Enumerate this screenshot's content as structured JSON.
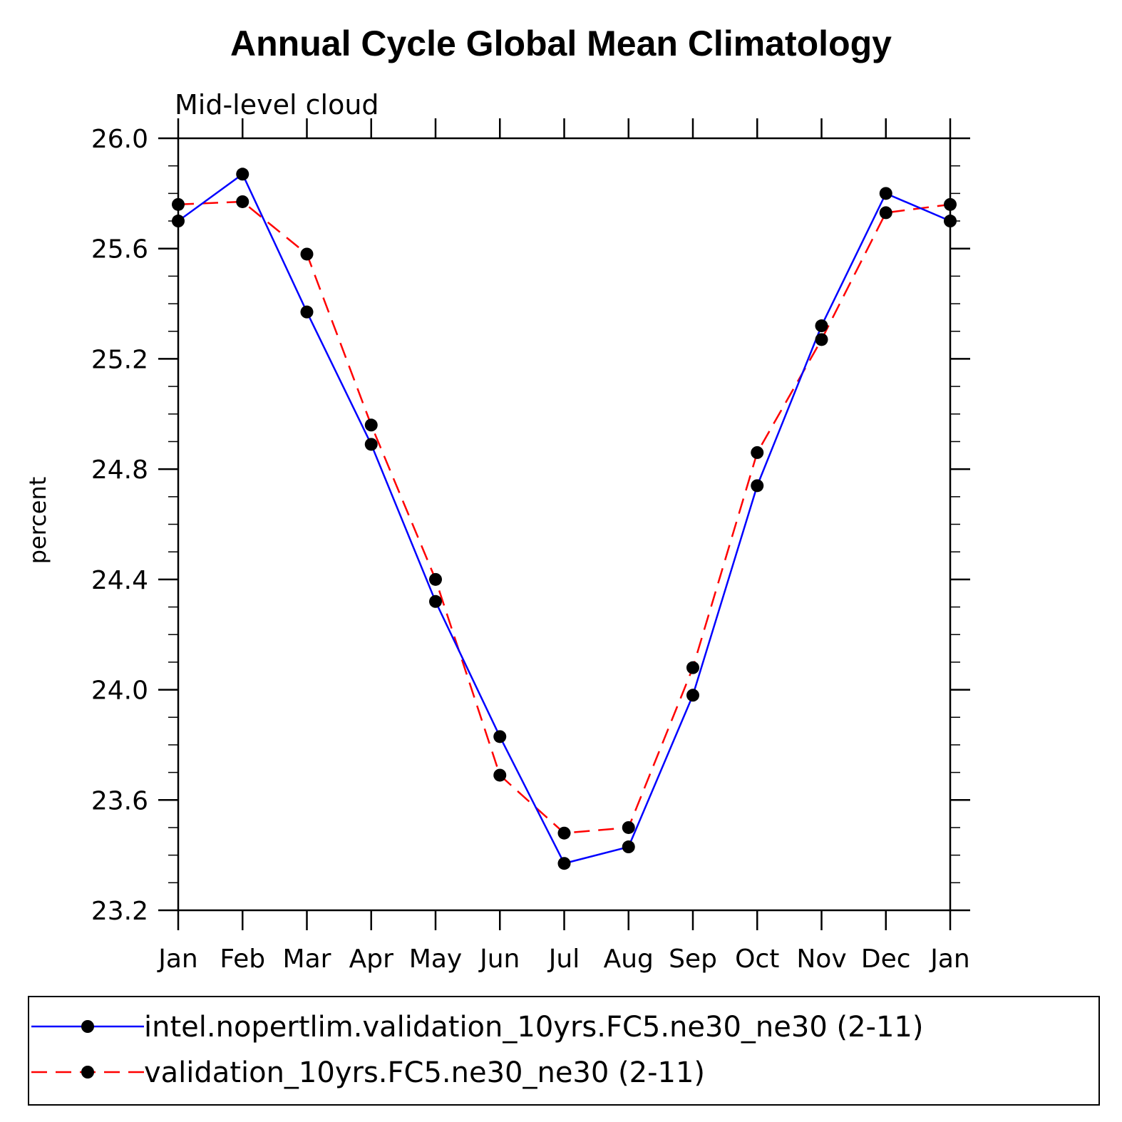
{
  "chart_data": {
    "type": "line",
    "title": "Annual Cycle Global Mean Climatology",
    "subtitle": "Mid-level cloud",
    "xlabel": "",
    "ylabel": "percent",
    "categories": [
      "Jan",
      "Feb",
      "Mar",
      "Apr",
      "May",
      "Jun",
      "Jul",
      "Aug",
      "Sep",
      "Oct",
      "Nov",
      "Dec",
      "Jan"
    ],
    "ylim": [
      23.2,
      26.0
    ],
    "yticks": [
      "23.2",
      "23.6",
      "24.0",
      "24.4",
      "24.8",
      "25.2",
      "25.6",
      "26.0"
    ],
    "series": [
      {
        "name": "intel.nopertlim.validation_10yrs.FC5.ne30_ne30 (2-11)",
        "color": "#0000ff",
        "dash": "solid",
        "values": [
          25.7,
          25.87,
          25.37,
          24.89,
          24.32,
          23.83,
          23.37,
          23.43,
          23.98,
          24.74,
          25.32,
          25.8,
          25.7
        ]
      },
      {
        "name": "validation_10yrs.FC5.ne30_ne30 (2-11)",
        "color": "#ff0000",
        "dash": "dashed",
        "values": [
          25.76,
          25.77,
          25.58,
          24.96,
          24.4,
          23.69,
          23.48,
          23.5,
          24.08,
          24.86,
          25.27,
          25.73,
          25.76
        ]
      }
    ],
    "legend_position": "bottom"
  }
}
